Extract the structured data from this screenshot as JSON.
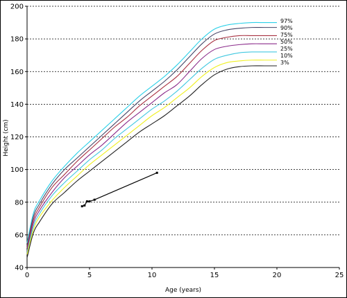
{
  "chart_data": {
    "type": "line",
    "title": "",
    "xlabel": "Age (years)",
    "ylabel": "Height (cm)",
    "xlim": [
      0,
      25
    ],
    "ylim": [
      40,
      200
    ],
    "xticks": [
      0,
      5,
      10,
      15,
      20,
      25
    ],
    "yticks": [
      40,
      60,
      80,
      100,
      120,
      140,
      160,
      180,
      200
    ],
    "grid": "horizontal dashed",
    "x": [
      0,
      0.5,
      1,
      2,
      3,
      4,
      5,
      6,
      7,
      8,
      9,
      10,
      11,
      12,
      13,
      14,
      15,
      16,
      17,
      18,
      19,
      20
    ],
    "series": [
      {
        "name": "97%",
        "color": "#2bd0e8",
        "values": [
          55,
          73,
          81,
          93,
          102,
          110,
          117,
          124,
          131,
          138,
          145,
          151,
          157,
          164,
          172,
          180,
          186,
          188.5,
          189.5,
          190,
          190,
          190
        ]
      },
      {
        "name": "90%",
        "color": "#444466",
        "values": [
          53,
          71,
          79,
          91,
          100,
          107,
          114,
          121,
          128,
          135,
          142,
          148,
          154,
          161,
          169,
          177,
          183,
          185.5,
          186.5,
          187,
          187,
          187
        ]
      },
      {
        "name": "75%",
        "color": "#a83040",
        "values": [
          52,
          69,
          77,
          89,
          97,
          105,
          112,
          119,
          126,
          132,
          139,
          145,
          151,
          157,
          165,
          173,
          179,
          181,
          182,
          182,
          182,
          182
        ]
      },
      {
        "name": "50%",
        "color": "#8a2a8a",
        "values": [
          50,
          67,
          75,
          86,
          95,
          102,
          109,
          115,
          122,
          129,
          135,
          141,
          147,
          152,
          160,
          168,
          173.5,
          175.5,
          176.5,
          177,
          177,
          177
        ]
      },
      {
        "name": "25%",
        "color": "#40c8e0",
        "values": [
          49,
          65,
          73,
          84,
          92,
          99,
          106,
          112,
          119,
          125,
          131,
          137,
          142,
          148,
          155,
          162,
          167.5,
          170,
          171.5,
          172,
          172,
          172
        ]
      },
      {
        "name": "10%",
        "color": "#f0f020",
        "values": [
          48,
          63,
          71,
          81,
          89,
          96,
          103,
          109,
          115,
          121,
          127,
          133,
          138,
          144,
          150,
          157,
          162.5,
          165.5,
          166.5,
          167,
          167,
          167
        ]
      },
      {
        "name": "3%",
        "color": "#222222",
        "values": [
          46,
          61,
          68,
          79,
          86,
          93,
          99,
          105,
          111,
          117,
          123,
          128,
          133,
          139,
          145,
          152,
          158,
          161.5,
          163,
          163.5,
          163.5,
          163.5
        ]
      }
    ],
    "patient": {
      "color": "#000000",
      "points": [
        {
          "x": 4.4,
          "y": 77.5
        },
        {
          "x": 4.6,
          "y": 78
        },
        {
          "x": 4.8,
          "y": 80.5
        },
        {
          "x": 5.0,
          "y": 80.5
        },
        {
          "x": 5.4,
          "y": 81.5
        },
        {
          "x": 10.4,
          "y": 98
        }
      ]
    }
  }
}
